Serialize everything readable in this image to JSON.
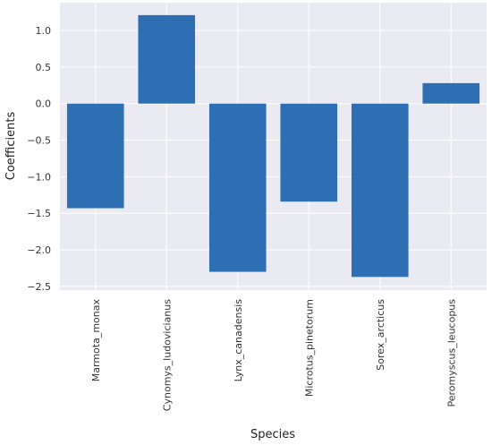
{
  "chart_data": {
    "type": "bar",
    "title": "",
    "xlabel": "Species",
    "ylabel": "Coefficients",
    "categories": [
      "Marmota_monax",
      "Cynomys_ludovicianus",
      "Lynx_canadensis",
      "Microtus_pinetorum",
      "Sorex_arcticus",
      "Peromyscus_leucopus"
    ],
    "values": [
      -1.43,
      1.21,
      -2.3,
      -1.34,
      -2.37,
      0.28
    ],
    "ylim": [
      -2.55,
      1.38
    ],
    "yticks": [
      1.0,
      0.5,
      0.0,
      -0.5,
      -1.0,
      -1.5,
      -2.0,
      -2.5
    ],
    "ytick_labels": [
      "1.0",
      "0.5",
      "0.0",
      "−0.5",
      "−1.0",
      "−1.5",
      "−2.0",
      "−2.5"
    ],
    "grid": true,
    "legend": "none",
    "colors": {
      "bar": "#2e6fb4",
      "plot_bg": "#eaeaf2",
      "grid": "#ffffff"
    }
  }
}
